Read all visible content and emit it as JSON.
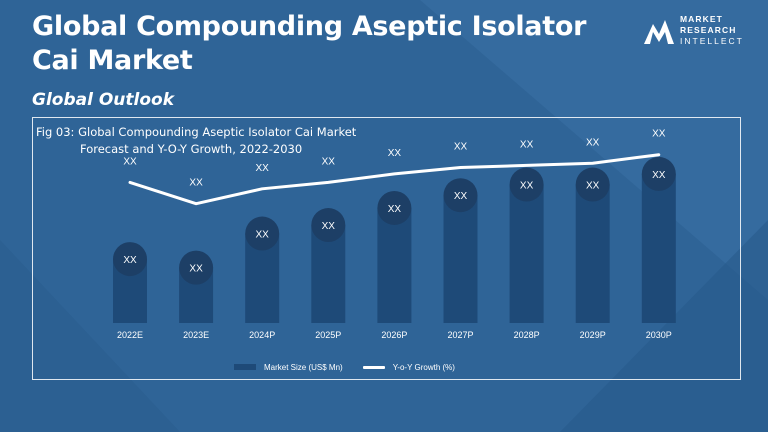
{
  "header": {
    "title": "Global Compounding Aseptic Isolator Cai Market",
    "subtitle": "Global Outlook"
  },
  "logo": {
    "line1": "MARKET",
    "line2": "RESEARCH",
    "line3": "INTELLECT"
  },
  "figure": {
    "caption_line1": "Fig 03: Global Compounding Aseptic Isolator Cai Market",
    "caption_line2": "Forecast and Y-O-Y Growth, 2022-2030"
  },
  "legend": {
    "bars": "Market Size (US$ Mn)",
    "line": "Y-o-Y Growth (%)"
  },
  "colors": {
    "background": "#2f6497",
    "bar": "#1e4a78",
    "bubble": "#1d3f66",
    "line": "#ffffff"
  },
  "chart_data": {
    "type": "bar",
    "categories": [
      "2022E",
      "2023E",
      "2024P",
      "2025P",
      "2026P",
      "2027P",
      "2028P",
      "2029P",
      "2030P"
    ],
    "series": [
      {
        "type": "bar",
        "values": [
          30,
          26,
          42,
          46,
          54,
          60,
          65,
          65,
          70
        ],
        "labels": [
          "XX",
          "XX",
          "XX",
          "XX",
          "XX",
          "XX",
          "XX",
          "XX",
          "XX"
        ]
      },
      {
        "type": "line",
        "values": [
          66,
          56,
          63,
          66,
          70,
          73,
          74,
          75,
          79
        ],
        "labels": [
          "XX",
          "XX",
          "XX",
          "XX",
          "XX",
          "XX",
          "XX",
          "XX",
          "XX"
        ]
      }
    ],
    "ylim": [
      0,
      100
    ],
    "grid": false,
    "legend_position": "bottom"
  }
}
